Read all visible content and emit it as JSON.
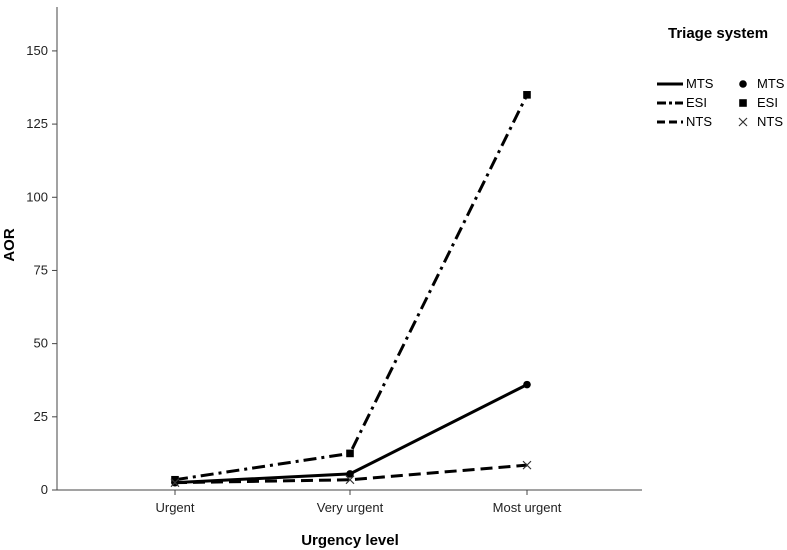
{
  "chart_data": {
    "type": "line",
    "xlabel": "Urgency level",
    "ylabel": "AOR",
    "categories": [
      "Urgent",
      "Very urgent",
      "Most urgent"
    ],
    "ylim": [
      0,
      165
    ],
    "yticks": [
      0,
      25,
      50,
      75,
      100,
      125,
      150
    ],
    "grid": false,
    "legend": {
      "title": "Triage system",
      "placement": "top-right",
      "line_entries": [
        "MTS",
        "ESI",
        "NTS"
      ],
      "marker_entries": [
        "MTS",
        "ESI",
        "NTS"
      ]
    },
    "series": [
      {
        "name": "MTS",
        "values": [
          2.5,
          5.5,
          36
        ],
        "line": "solid",
        "marker": "circle"
      },
      {
        "name": "ESI",
        "values": [
          3.5,
          12.5,
          135
        ],
        "line": "dash-dot",
        "marker": "square"
      },
      {
        "name": "NTS",
        "values": [
          2.5,
          3.5,
          8.5
        ],
        "line": "dashed",
        "marker": "x"
      }
    ],
    "colors": {
      "series": "#000000",
      "axis": "#444444"
    }
  }
}
